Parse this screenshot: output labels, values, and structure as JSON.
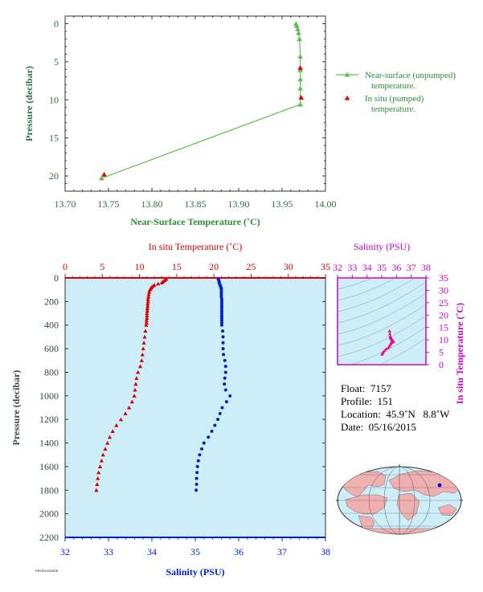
{
  "chart_data": [
    {
      "type": "line",
      "id": "near_surface",
      "xlabel": "Near-Surface Temperature (˚C)",
      "ylabel": "Pressure (decibar)",
      "xlim": [
        13.7,
        14.0
      ],
      "ylim": [
        22,
        -1
      ],
      "xticks": [
        "13.70",
        "13.75",
        "13.80",
        "13.85",
        "13.90",
        "13.95",
        "14.00"
      ],
      "yticks": [
        "0",
        "5",
        "10",
        "15",
        "20"
      ],
      "series": [
        {
          "name": "Near-surface (unpumped) temperature.",
          "color": "#66bb55",
          "marker": "triangle",
          "x": [
            13.966,
            13.967,
            13.968,
            13.969,
            13.97,
            13.971,
            13.971,
            13.971,
            13.971,
            13.971,
            13.742
          ],
          "y": [
            0.0,
            0.3,
            0.7,
            1.2,
            2.0,
            4.3,
            6.1,
            7.3,
            8.5,
            10.6,
            20.3
          ]
        },
        {
          "name": "In situ (pumped) temperature.",
          "color": "#dd0000",
          "marker": "triangle",
          "x": [
            13.971,
            13.972,
            13.745
          ],
          "y": [
            5.8,
            9.7,
            19.8
          ]
        }
      ],
      "legend_lines": [
        [
          "Near-surface (unpumped)",
          "temperature."
        ],
        [
          "In situ (pumped)",
          "temperature."
        ]
      ]
    },
    {
      "type": "scatter",
      "id": "profile",
      "top_axis_label": "In situ Temperature (˚C)",
      "bottom_axis_label": "Salinity (PSU)",
      "ylabel": "Pressure (decibar)",
      "temperature_range": [
        0,
        35
      ],
      "salinity_range": [
        32,
        38
      ],
      "pressure_range": [
        0,
        2200
      ],
      "temperature_ticks": [
        "0",
        "5",
        "10",
        "15",
        "20",
        "25",
        "30",
        "35"
      ],
      "salinity_ticks": [
        "32",
        "33",
        "34",
        "35",
        "36",
        "37",
        "38"
      ],
      "pressure_ticks": [
        "0",
        "200",
        "400",
        "600",
        "800",
        "1000",
        "1200",
        "1400",
        "1600",
        "1800",
        "2000",
        "2200"
      ],
      "temperature_color": "#dd0000",
      "salinity_color": "#0022cc",
      "background_color": "#cdeef8",
      "temperature": {
        "p": [
          10,
          20,
          30,
          40,
          50,
          60,
          70,
          80,
          90,
          100,
          120,
          140,
          160,
          180,
          200,
          220,
          240,
          260,
          280,
          300,
          320,
          340,
          360,
          380,
          400,
          450,
          500,
          550,
          600,
          650,
          700,
          750,
          800,
          850,
          900,
          950,
          1000,
          1050,
          1100,
          1150,
          1200,
          1250,
          1300,
          1350,
          1400,
          1450,
          1500,
          1550,
          1600,
          1650,
          1700,
          1750,
          1800
        ],
        "t": [
          13.6,
          13.4,
          13.2,
          13.0,
          12.5,
          12.0,
          11.8,
          11.6,
          11.5,
          11.4,
          11.3,
          11.25,
          11.2,
          11.15,
          11.15,
          11.1,
          11.1,
          11.05,
          11.05,
          11.0,
          11.0,
          11.0,
          10.95,
          10.95,
          10.9,
          10.8,
          10.7,
          10.6,
          10.5,
          10.4,
          10.3,
          10.1,
          9.8,
          9.6,
          9.5,
          9.4,
          9.3,
          9.0,
          8.6,
          8.1,
          7.5,
          6.9,
          6.4,
          6.0,
          5.7,
          5.4,
          5.1,
          4.9,
          4.7,
          4.5,
          4.4,
          4.3,
          4.2
        ]
      },
      "salinity": {
        "p": [
          10,
          20,
          30,
          40,
          50,
          60,
          70,
          80,
          90,
          100,
          120,
          140,
          160,
          180,
          200,
          220,
          240,
          260,
          280,
          300,
          320,
          340,
          360,
          380,
          400,
          450,
          500,
          550,
          600,
          650,
          700,
          750,
          800,
          850,
          900,
          950,
          1000,
          1050,
          1100,
          1150,
          1200,
          1250,
          1300,
          1350,
          1400,
          1450,
          1500,
          1550,
          1600,
          1650,
          1700,
          1750,
          1800
        ],
        "s": [
          35.53,
          35.54,
          35.55,
          35.55,
          35.56,
          35.57,
          35.58,
          35.59,
          35.6,
          35.6,
          35.6,
          35.6,
          35.6,
          35.61,
          35.61,
          35.61,
          35.61,
          35.61,
          35.61,
          35.61,
          35.61,
          35.61,
          35.61,
          35.61,
          35.61,
          35.63,
          35.64,
          35.64,
          35.64,
          35.65,
          35.68,
          35.7,
          35.7,
          35.68,
          35.67,
          35.7,
          35.8,
          35.72,
          35.62,
          35.57,
          35.52,
          35.45,
          35.38,
          35.3,
          35.2,
          35.15,
          35.1,
          35.07,
          35.05,
          35.04,
          35.03,
          35.03,
          35.02
        ]
      }
    },
    {
      "type": "scatter",
      "id": "ts_diagram",
      "title": "Salinity (PSU)",
      "ylabel": "In situ Temperature (˚C)",
      "xlim": [
        32,
        38
      ],
      "ylim": [
        0,
        35
      ],
      "xticks": [
        "32",
        "33",
        "34",
        "35",
        "36",
        "37",
        "38"
      ],
      "yticks": [
        "0",
        "5",
        "10",
        "15",
        "20",
        "25",
        "30",
        "35"
      ],
      "color": "#e0128c",
      "border_color": "#cc00cc",
      "background_color": "#cdeef8",
      "points_s": [
        35.02,
        35.05,
        35.1,
        35.2,
        35.3,
        35.45,
        35.52,
        35.57,
        35.62,
        35.7,
        35.72,
        35.8,
        35.7,
        35.68,
        35.65,
        35.64,
        35.63,
        35.61,
        35.6,
        35.58,
        35.55,
        35.53
      ],
      "points_t": [
        4.2,
        4.7,
        5.1,
        5.7,
        6.4,
        6.9,
        7.5,
        8.1,
        8.6,
        9.0,
        9.3,
        9.5,
        9.8,
        10.3,
        10.5,
        10.7,
        10.9,
        11.0,
        11.2,
        11.5,
        12.5,
        13.6
      ]
    }
  ],
  "float_info": {
    "float_label": "Float:",
    "float": "7157",
    "profile_label": "Profile:",
    "profile": "151",
    "location_label": "Location:",
    "location": "45.9˚N   8.8˚W",
    "date_label": "Date:",
    "date": "05/16/2015"
  },
  "map": {
    "land_color": "#f0b0b0",
    "ocean_color": "#cdeef8",
    "marker_color": "#0000dd"
  },
  "footer_text": "PROFILE/DATE"
}
